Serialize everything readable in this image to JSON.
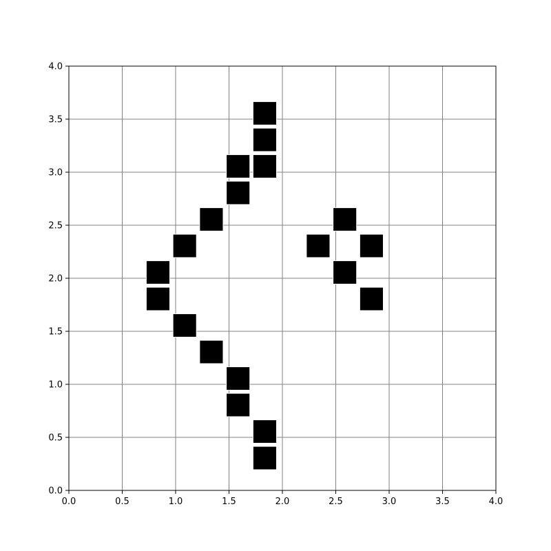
{
  "chart_data": {
    "type": "scatter",
    "title": "",
    "xlabel": "",
    "ylabel": "",
    "xlim": [
      0,
      4
    ],
    "ylim": [
      0,
      4
    ],
    "grid": true,
    "marker": "square",
    "marker_size_data_units": 0.22,
    "x_ticks": [
      "0.0",
      "0.5",
      "1.0",
      "1.5",
      "2.0",
      "2.5",
      "3.0",
      "3.5",
      "4.0"
    ],
    "y_ticks": [
      "0.0",
      "0.5",
      "1.0",
      "1.5",
      "2.0",
      "2.5",
      "3.0",
      "3.5",
      "4.0"
    ],
    "points": [
      {
        "x": 1.835,
        "y": 3.555
      },
      {
        "x": 1.835,
        "y": 3.305
      },
      {
        "x": 1.835,
        "y": 3.055
      },
      {
        "x": 1.585,
        "y": 3.055
      },
      {
        "x": 1.585,
        "y": 2.805
      },
      {
        "x": 1.335,
        "y": 2.555
      },
      {
        "x": 1.085,
        "y": 2.305
      },
      {
        "x": 0.835,
        "y": 2.055
      },
      {
        "x": 0.835,
        "y": 1.805
      },
      {
        "x": 1.085,
        "y": 1.555
      },
      {
        "x": 1.335,
        "y": 1.305
      },
      {
        "x": 1.585,
        "y": 1.055
      },
      {
        "x": 1.585,
        "y": 0.805
      },
      {
        "x": 1.835,
        "y": 0.555
      },
      {
        "x": 1.835,
        "y": 0.305
      },
      {
        "x": 2.585,
        "y": 2.555
      },
      {
        "x": 2.335,
        "y": 2.305
      },
      {
        "x": 2.835,
        "y": 2.305
      },
      {
        "x": 2.585,
        "y": 2.055
      },
      {
        "x": 2.835,
        "y": 1.805
      }
    ],
    "colors": {
      "marker": "#000000",
      "marker_edge": "#ffffff",
      "grid": "#808080",
      "axes": "#000000",
      "background": "#ffffff"
    }
  }
}
